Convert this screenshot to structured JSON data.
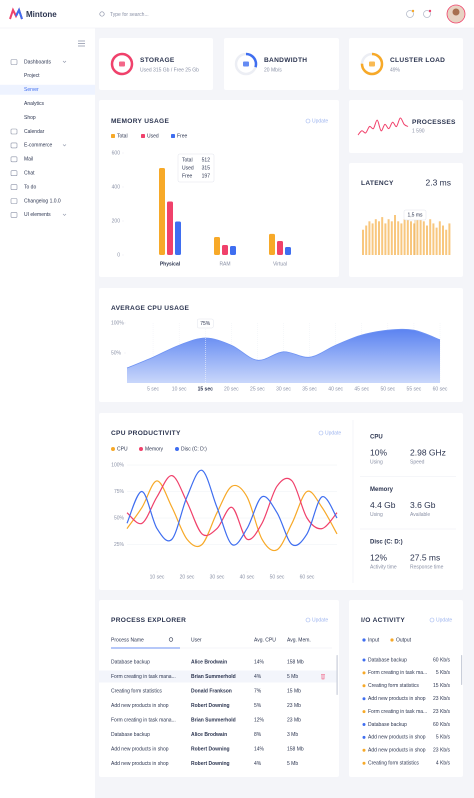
{
  "header": {
    "brand": "Mintone",
    "search": "Type for search..."
  },
  "sidebar": {
    "items": [
      "Dashboards",
      "Project",
      "Server",
      "Analytics",
      "Shop",
      "Calendar",
      "E-commerce",
      "Mail",
      "Chat",
      "To do",
      "Changelog 1.0.0",
      "UI elements"
    ],
    "active_index": 2
  },
  "stats": [
    {
      "title": "STORAGE",
      "detail": "Used 315 Gb / Free 25 Gb",
      "color": "#f0416b"
    },
    {
      "title": "BANDWIDTH",
      "detail": "20 Mb/s",
      "color": "#3f6ef0"
    },
    {
      "title": "CLUSTER LOAD",
      "detail": "49%",
      "color": "#f7a928"
    }
  ],
  "chart_data": [
    {
      "type": "grouped_bar",
      "title": "MEMORY USAGE",
      "action": "Update",
      "categories": [
        "Physical",
        "RAM",
        "Virtual"
      ],
      "series": [
        {
          "name": "Total",
          "color": "#f7a928",
          "values": [
            512,
            106,
            124
          ]
        },
        {
          "name": "Used",
          "color": "#f0416b",
          "values": [
            315,
            59,
            82
          ]
        },
        {
          "name": "Free",
          "color": "#3f6ef0",
          "values": [
            197,
            53,
            47
          ]
        }
      ],
      "ylim": [
        0,
        600
      ],
      "yticks": [
        0,
        200,
        400,
        600
      ],
      "tooltip": {
        "labels": [
          "Total",
          "Used",
          "Free"
        ],
        "values": [
          512,
          315,
          197
        ]
      }
    },
    {
      "type": "area",
      "title": "AVERAGE CPU USAGE",
      "color": "#6f93f3",
      "x": [
        0,
        5,
        10,
        15,
        20,
        25,
        30,
        35,
        40,
        45,
        50,
        55,
        60
      ],
      "values": [
        25,
        43,
        63,
        75,
        63,
        38,
        52,
        43,
        63,
        80,
        88,
        88,
        72
      ],
      "xlim": [
        0,
        60
      ],
      "ylim": [
        0,
        100
      ],
      "xticks": [
        {
          "value": 5,
          "label": "5 sec"
        },
        {
          "value": 10,
          "label": "10 sec"
        },
        {
          "value": 15,
          "label": "15 sec"
        },
        {
          "value": 20,
          "label": "20 sec"
        },
        {
          "value": 25,
          "label": "25 sec"
        },
        {
          "value": 30,
          "label": "30 sec"
        },
        {
          "value": 35,
          "label": "35 sec"
        },
        {
          "value": 40,
          "label": "40 sec"
        },
        {
          "value": 45,
          "label": "45 sec"
        },
        {
          "value": 50,
          "label": "50 sec"
        },
        {
          "value": 55,
          "label": "55 sec"
        },
        {
          "value": 60,
          "label": "60 sec"
        }
      ],
      "yticks": [
        {
          "value": 50,
          "label": "50%"
        },
        {
          "value": 100,
          "label": "100%"
        }
      ],
      "tooltip": "75%"
    },
    {
      "type": "line",
      "title": "CPU PRODUCTIVITY",
      "action": "Update",
      "x": [
        0,
        5,
        10,
        15,
        20,
        25,
        30,
        35,
        40,
        45,
        50,
        55,
        60,
        65,
        70
      ],
      "series": [
        {
          "name": "CPU",
          "color": "#f7a928",
          "values": [
            40,
            60,
            85,
            60,
            30,
            25,
            55,
            80,
            70,
            30,
            20,
            45,
            75,
            60,
            35
          ]
        },
        {
          "name": "Memory",
          "color": "#f0416b",
          "values": [
            55,
            45,
            70,
            90,
            65,
            35,
            40,
            60,
            30,
            45,
            80,
            85,
            50,
            40,
            55
          ]
        },
        {
          "name": "Disc (C: D:)",
          "color": "#3f6ef0",
          "values": [
            45,
            75,
            40,
            30,
            70,
            95,
            60,
            25,
            40,
            70,
            55,
            25,
            35,
            70,
            50
          ]
        }
      ],
      "xlim": [
        0,
        70
      ],
      "ylim": [
        0,
        100
      ],
      "xticks": [
        {
          "value": 10,
          "label": "10 sec"
        },
        {
          "value": 20,
          "label": "20 sec"
        },
        {
          "value": 30,
          "label": "30 sec"
        },
        {
          "value": 40,
          "label": "40 sec"
        },
        {
          "value": 50,
          "label": "50 sec"
        },
        {
          "value": 60,
          "label": "60 sec"
        }
      ],
      "yticks": [
        {
          "value": 25,
          "label": "25%"
        },
        {
          "value": 50,
          "label": "50%"
        },
        {
          "value": 75,
          "label": "75%"
        },
        {
          "value": 100,
          "label": "100%"
        }
      ]
    },
    {
      "type": "sparkline",
      "title": "PROCESSES",
      "subtitle": "1 590",
      "color": "#f0416b",
      "values": [
        5,
        7,
        6,
        9,
        8,
        12,
        7,
        10,
        8,
        11,
        9,
        13,
        10,
        9
      ]
    },
    {
      "type": "bar",
      "title": "LATENCY",
      "value": "2.3 ms",
      "tooltip": "1,5 ms",
      "color": "#f8c77e",
      "values": [
        1.2,
        1.4,
        1.6,
        1.5,
        1.7,
        1.6,
        1.8,
        1.5,
        1.7,
        1.6,
        1.9,
        1.6,
        1.5,
        1.7,
        1.8,
        1.6,
        1.5,
        1.9,
        1.7,
        1.6,
        1.4,
        1.7,
        1.5,
        1.3,
        1.6,
        1.4,
        1.2,
        1.5
      ]
    }
  ],
  "cpu_stats": [
    {
      "title": "CPU",
      "items": [
        {
          "value": "10%",
          "label": "Using",
          "color": "#f0416b"
        },
        {
          "value": "2.98 GHz",
          "label": "Speed",
          "color": "#3f6ef0"
        }
      ]
    },
    {
      "title": "Memory",
      "items": [
        {
          "value": "4.4 Gb",
          "label": "Using",
          "color": "#f0416b"
        },
        {
          "value": "3.6 Gb",
          "label": "Available",
          "color": "#3f6ef0"
        }
      ]
    },
    {
      "title": "Disc (C: D:)",
      "items": [
        {
          "value": "12%",
          "label": "Activity time",
          "color": "#f0416b"
        },
        {
          "value": "27.5 ms",
          "label": "Response time",
          "color": "#3f6ef0"
        }
      ]
    }
  ],
  "process_explorer": {
    "title": "PROCESS EXPLORER",
    "action": "Update",
    "columns": [
      "Process Name",
      "User",
      "Avg. CPU",
      "Avg. Mem."
    ],
    "rows": [
      [
        "Database backup",
        "Alice Brodwain",
        "14%",
        "158 Mb"
      ],
      [
        "Form creating in task mana...",
        "Brian Summerhold",
        "4%",
        "5 Mb"
      ],
      [
        "Creating form statistics",
        "Donald Frankson",
        "7%",
        "15 Mb"
      ],
      [
        "Add new products in shop",
        "Robert Downing",
        "5%",
        "23 Mb"
      ],
      [
        "Form creating in task mana...",
        "Brian Summerhold",
        "12%",
        "23 Mb"
      ],
      [
        "Database backup",
        "Alice Brodwain",
        "8%",
        "3 Mb"
      ],
      [
        "Add new products in shop",
        "Robert Downing",
        "14%",
        "158 Mb"
      ],
      [
        "Add new products in shop",
        "Robert Downing",
        "4%",
        "5 Mb"
      ]
    ]
  },
  "io_activity": {
    "title": "I/O ACTIVITY",
    "action": "Update",
    "legend": [
      {
        "name": "Input",
        "color": "#3f6ef0"
      },
      {
        "name": "Output",
        "color": "#f7a928"
      }
    ],
    "rows": [
      {
        "name": "Database backup",
        "rate": "60 Kb/s",
        "color": "#3f6ef0"
      },
      {
        "name": "Form creating in task ma...",
        "rate": "5 Kb/s",
        "color": "#f7a928"
      },
      {
        "name": "Creating form statistics",
        "rate": "15 Kb/s",
        "color": "#f7a928"
      },
      {
        "name": "Add new products in shop",
        "rate": "23 Kb/s",
        "color": "#3f6ef0"
      },
      {
        "name": "Form creating in task ma...",
        "rate": "23 Kb/s",
        "color": "#f7a928"
      },
      {
        "name": "Database backup",
        "rate": "60 Kb/s",
        "color": "#3f6ef0"
      },
      {
        "name": "Add new products in shop",
        "rate": "5 Kb/s",
        "color": "#3f6ef0"
      },
      {
        "name": "Add new products in shop",
        "rate": "23 Kb/s",
        "color": "#f7a928"
      },
      {
        "name": "Creating form statistics",
        "rate": "4 Kb/s",
        "color": "#f7a928"
      }
    ]
  }
}
